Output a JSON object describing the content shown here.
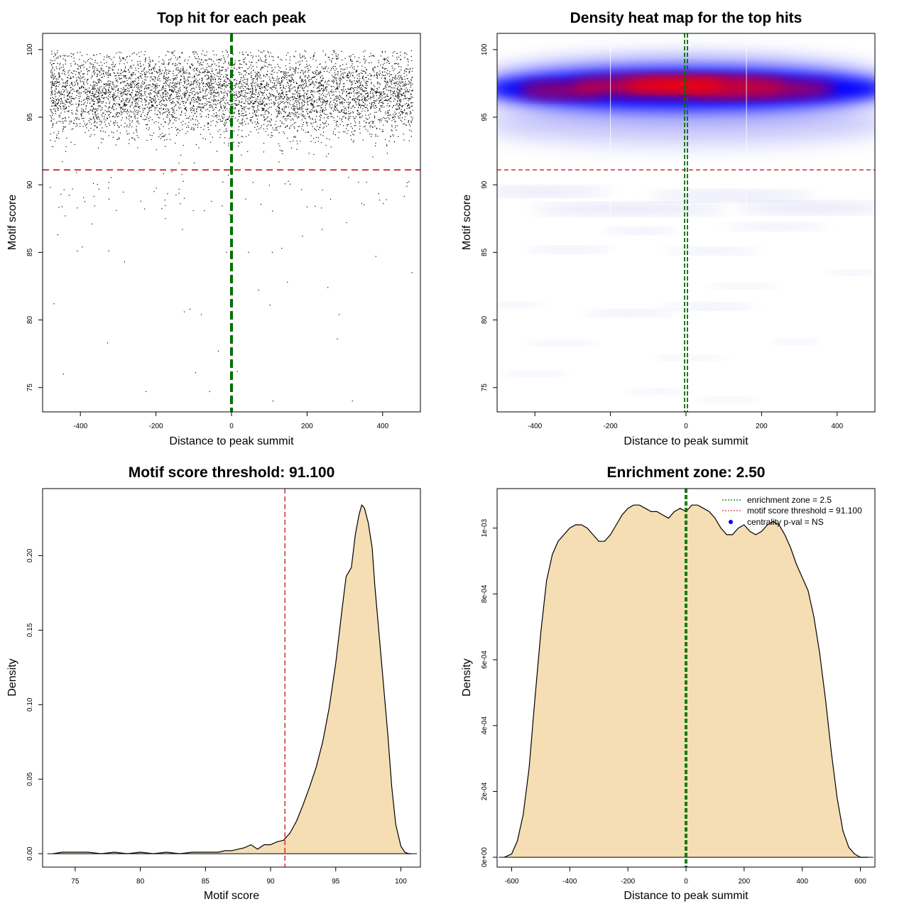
{
  "chart_data": [
    {
      "type": "scatter",
      "title": "Top hit for each peak",
      "xlabel": "Distance to peak summit",
      "ylabel": "Motif score",
      "xlim": [
        -500,
        500
      ],
      "ylim": [
        73.2,
        101.2
      ],
      "xticks": [
        -400,
        -200,
        0,
        200,
        400
      ],
      "yticks": [
        75,
        80,
        85,
        90,
        95,
        100
      ],
      "vline": {
        "x": 0,
        "color": "#007000",
        "style": "dashed"
      },
      "hline": {
        "y": 91.1,
        "color": "#d03030",
        "style": "dashed"
      },
      "points_summary": "about 6000 points; dense band of motif scores 91–100 spread uniformly across distances -480 to 480",
      "outliers": [
        [
          -470,
          81.2
        ],
        [
          -445,
          76.0
        ],
        [
          -408,
          85.1
        ],
        [
          -395,
          85.4
        ],
        [
          -370,
          87.1
        ],
        [
          -328,
          78.3
        ],
        [
          -325,
          85.1
        ],
        [
          -305,
          88.1
        ],
        [
          -283,
          84.3
        ],
        [
          -226,
          74.7
        ],
        [
          -205,
          89.5
        ],
        [
          -175,
          87.5
        ],
        [
          -130,
          86.7
        ],
        [
          -125,
          80.6
        ],
        [
          -110,
          80.8
        ],
        [
          -95,
          76.1
        ],
        [
          -80,
          80.4
        ],
        [
          -58,
          74.7
        ],
        [
          -35,
          77.7
        ],
        [
          -13,
          85.0
        ],
        [
          -5,
          87.8
        ],
        [
          15,
          76.2
        ],
        [
          45,
          85.0
        ],
        [
          72,
          82.2
        ],
        [
          102,
          81.1
        ],
        [
          108,
          85.0
        ],
        [
          110,
          74.0
        ],
        [
          133,
          85.3
        ],
        [
          148,
          82.8
        ],
        [
          188,
          86.2
        ],
        [
          240,
          86.7
        ],
        [
          255,
          82.4
        ],
        [
          280,
          78.6
        ],
        [
          285,
          80.4
        ],
        [
          305,
          87.2
        ],
        [
          320,
          74.0
        ],
        [
          382,
          84.7
        ],
        [
          478,
          83.5
        ],
        [
          -460,
          86.3
        ],
        [
          -440,
          87.7
        ],
        [
          345,
          88.6
        ],
        [
          410,
          88.9
        ]
      ]
    },
    {
      "type": "heatmap",
      "title": "Density heat map for the top hits",
      "xlabel": "Distance to peak summit",
      "ylabel": "Motif score",
      "xlim": [
        -500,
        500
      ],
      "ylim": [
        73.2,
        101.2
      ],
      "xticks": [
        -400,
        -200,
        0,
        200,
        400
      ],
      "yticks": [
        75,
        80,
        85,
        90,
        95,
        100
      ],
      "colors": {
        "low": "#ffffff",
        "mid": "#0000ff",
        "high": "#ff0000"
      },
      "vline": {
        "x": 0,
        "color": "#007000",
        "style": "dashed"
      },
      "hline": {
        "y": 91.1,
        "color": "#d03030",
        "style": "dashed"
      }
    },
    {
      "type": "area",
      "title": "Motif score threshold: 91.100",
      "xlabel": "Motif score",
      "ylabel": "Density",
      "xlim": [
        72.5,
        101.5
      ],
      "ylim": [
        -0.009,
        0.245
      ],
      "xticks": [
        75,
        80,
        85,
        90,
        95,
        100
      ],
      "yticks": [
        0.0,
        0.05,
        0.1,
        0.15,
        0.2
      ],
      "ytick_labels": [
        "0.00",
        "0.05",
        "0.10",
        "0.15",
        "0.20"
      ],
      "fill": "#f5deb3",
      "vline": {
        "x": 91.1,
        "color": "#d03030",
        "style": "dashed"
      },
      "x": [
        73.3,
        74,
        75,
        76,
        77,
        78,
        79,
        80,
        81,
        82,
        83,
        84,
        85,
        86,
        86.5,
        87,
        87.5,
        88,
        88.5,
        89,
        89.5,
        90,
        90.5,
        91,
        91.5,
        92,
        92.5,
        93,
        93.5,
        94,
        94.5,
        95,
        95.5,
        95.8,
        96.2,
        96.5,
        96.8,
        97,
        97.2,
        97.5,
        97.8,
        98,
        98.3,
        98.6,
        99,
        99.3,
        99.6,
        100,
        100.3,
        100.6,
        100.8
      ],
      "y": [
        0.0,
        0.001,
        0.001,
        0.001,
        0.0,
        0.001,
        0.0,
        0.001,
        0.0,
        0.001,
        0.0,
        0.001,
        0.001,
        0.001,
        0.002,
        0.002,
        0.003,
        0.004,
        0.006,
        0.003,
        0.006,
        0.006,
        0.008,
        0.009,
        0.014,
        0.022,
        0.033,
        0.045,
        0.058,
        0.075,
        0.098,
        0.128,
        0.165,
        0.186,
        0.192,
        0.214,
        0.228,
        0.234,
        0.232,
        0.222,
        0.205,
        0.18,
        0.15,
        0.12,
        0.08,
        0.045,
        0.02,
        0.005,
        0.001,
        0.0,
        0.0
      ]
    },
    {
      "type": "area",
      "title": "Enrichment zone: 2.50",
      "xlabel": "Distance to peak summit",
      "ylabel": "Density",
      "xlim": [
        -650,
        650
      ],
      "ylim": [
        -3e-05,
        0.00112
      ],
      "xticks": [
        -600,
        -400,
        -200,
        0,
        200,
        400,
        600
      ],
      "yticks": [
        0,
        0.0002,
        0.0004,
        0.0006,
        0.0008,
        0.001
      ],
      "ytick_labels": [
        "0e+00",
        "2e-04",
        "4e-04",
        "6e-04",
        "8e-04",
        "1e-03"
      ],
      "fill": "#f5deb3",
      "vlines": [
        {
          "x": -2.5,
          "color": "#007000",
          "style": "dashed"
        },
        {
          "x": 2.5,
          "color": "#007000",
          "style": "dashed"
        }
      ],
      "legend": {
        "position": "top-right",
        "entries": [
          {
            "label": "enrichment zone = 2.5",
            "color": "#007000",
            "style": "dotted"
          },
          {
            "label": "motif score threshold = 91.100",
            "color": "#d03030",
            "style": "dotted"
          },
          {
            "label": "centrality p-val = NS",
            "color": "#0000ff",
            "style": "point"
          }
        ]
      },
      "x": [
        -625,
        -600,
        -580,
        -560,
        -540,
        -520,
        -500,
        -480,
        -460,
        -440,
        -420,
        -400,
        -380,
        -360,
        -340,
        -320,
        -300,
        -280,
        -260,
        -240,
        -220,
        -200,
        -180,
        -160,
        -140,
        -120,
        -100,
        -80,
        -60,
        -40,
        -20,
        0,
        20,
        40,
        60,
        80,
        100,
        120,
        140,
        160,
        180,
        200,
        220,
        240,
        260,
        280,
        300,
        320,
        340,
        360,
        380,
        400,
        420,
        440,
        460,
        480,
        500,
        520,
        540,
        560,
        580,
        600,
        625
      ],
      "y": [
        0.0,
        1e-05,
        5e-05,
        0.00013,
        0.00027,
        0.00048,
        0.00068,
        0.00084,
        0.00092,
        0.00096,
        0.00098,
        0.001,
        0.00101,
        0.00101,
        0.001,
        0.00098,
        0.00096,
        0.00096,
        0.00098,
        0.00101,
        0.00104,
        0.00106,
        0.00107,
        0.00107,
        0.00106,
        0.00105,
        0.00105,
        0.00104,
        0.00103,
        0.00105,
        0.00106,
        0.00105,
        0.00107,
        0.00107,
        0.00106,
        0.00105,
        0.00103,
        0.001,
        0.00098,
        0.00098,
        0.001,
        0.00101,
        0.00099,
        0.00098,
        0.00099,
        0.00101,
        0.00102,
        0.00101,
        0.00098,
        0.00094,
        0.00089,
        0.00085,
        0.00081,
        0.00073,
        0.00062,
        0.00048,
        0.00032,
        0.00018,
        8e-05,
        3e-05,
        1e-05,
        0.0,
        0.0
      ]
    }
  ]
}
